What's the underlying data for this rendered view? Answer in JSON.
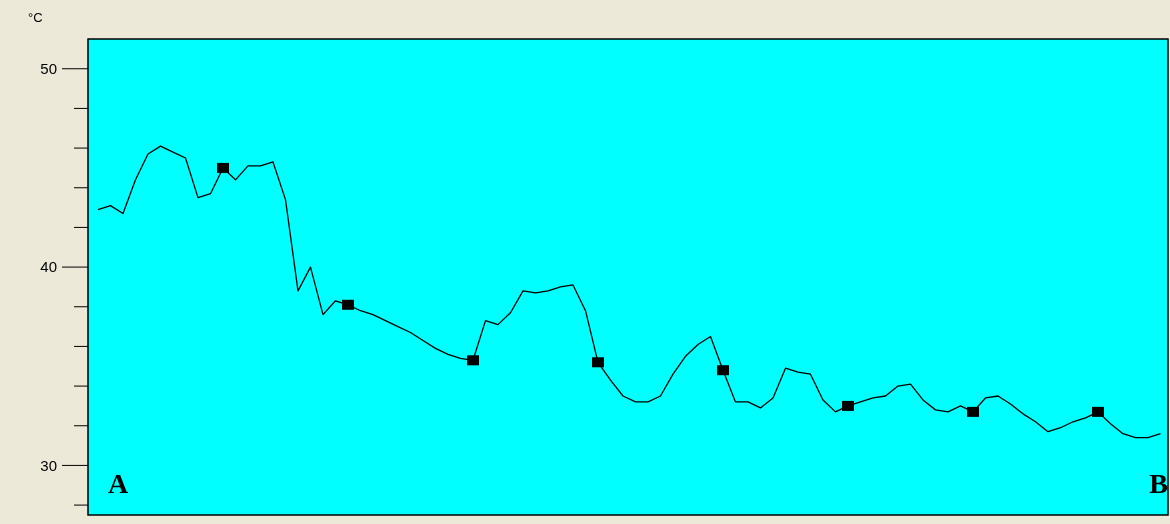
{
  "chart_data": {
    "type": "line",
    "ylabel": "°C",
    "annotations": [
      "A",
      "B"
    ],
    "categories": [
      null,
      null,
      null,
      null,
      null,
      null,
      null,
      null,
      null,
      null,
      null,
      null,
      null,
      null,
      null,
      null,
      null,
      null,
      null,
      null,
      null,
      null,
      null,
      null,
      null,
      null,
      null,
      null,
      null,
      null,
      null,
      null,
      null,
      null,
      null,
      null,
      null,
      null,
      null,
      null,
      null,
      null,
      null,
      null,
      null,
      null,
      null,
      null,
      null,
      null,
      null,
      null,
      null,
      null,
      null,
      null,
      null,
      null,
      null,
      null,
      null,
      null,
      null,
      null,
      null,
      null,
      null,
      null,
      null,
      null,
      null,
      null,
      null,
      null,
      null,
      null,
      null,
      null,
      null,
      null,
      null,
      null,
      null,
      null,
      null,
      null
    ],
    "ylim": [
      27.5,
      51.5
    ],
    "yticks": [
      {
        "value": 28,
        "label": null
      },
      30,
      {
        "value": 32,
        "label": null
      },
      {
        "value": 34,
        "label": null
      },
      {
        "value": 36,
        "label": null
      },
      {
        "value": 38,
        "label": null
      },
      40,
      {
        "value": 42,
        "label": null
      },
      {
        "value": 44,
        "label": null
      },
      {
        "value": 46,
        "label": null
      },
      {
        "value": 48,
        "label": null
      },
      50
    ],
    "series": [
      {
        "color": "#000000",
        "values": [
          42.9,
          43.1,
          42.7,
          44.4,
          45.7,
          46.1,
          45.8,
          45.5,
          43.5,
          43.7,
          45.0,
          44.4,
          45.1,
          45.1,
          45.3,
          43.4,
          38.8,
          40.0,
          37.6,
          38.3,
          38.1,
          37.8,
          37.6,
          37.3,
          37.0,
          36.7,
          36.3,
          35.9,
          35.6,
          35.4,
          35.3,
          37.3,
          37.1,
          37.7,
          38.8,
          38.7,
          38.8,
          39.0,
          39.1,
          37.8,
          35.2,
          34.3,
          33.5,
          33.2,
          33.2,
          33.5,
          34.6,
          35.5,
          36.1,
          36.5,
          34.8,
          33.2,
          33.2,
          32.9,
          33.4,
          34.9,
          34.7,
          34.6,
          33.3,
          32.7,
          33.0,
          33.2,
          33.4,
          33.5,
          34.0,
          34.1,
          33.3,
          32.8,
          32.7,
          33.0,
          32.7,
          33.4,
          33.5,
          33.1,
          32.6,
          32.2,
          31.7,
          31.9,
          32.2,
          32.4,
          32.7,
          32.1,
          31.6,
          31.4,
          31.4,
          31.6
        ]
      },
      {
        "type": "scatter",
        "marker": "square",
        "color": "#000000",
        "values": [
          null,
          null,
          null,
          null,
          null,
          null,
          null,
          null,
          null,
          null,
          45.0,
          null,
          null,
          null,
          null,
          null,
          null,
          null,
          null,
          null,
          38.1,
          null,
          null,
          null,
          null,
          null,
          null,
          null,
          null,
          null,
          35.3,
          null,
          null,
          null,
          null,
          null,
          null,
          null,
          null,
          null,
          35.2,
          null,
          null,
          null,
          null,
          null,
          null,
          null,
          null,
          null,
          34.8,
          null,
          null,
          null,
          null,
          null,
          null,
          null,
          null,
          null,
          33.0,
          null,
          null,
          null,
          null,
          null,
          null,
          null,
          null,
          null,
          32.7,
          null,
          null,
          null,
          null,
          null,
          null,
          null,
          null,
          null,
          32.7,
          null,
          null,
          null,
          null,
          null
        ]
      }
    ]
  }
}
